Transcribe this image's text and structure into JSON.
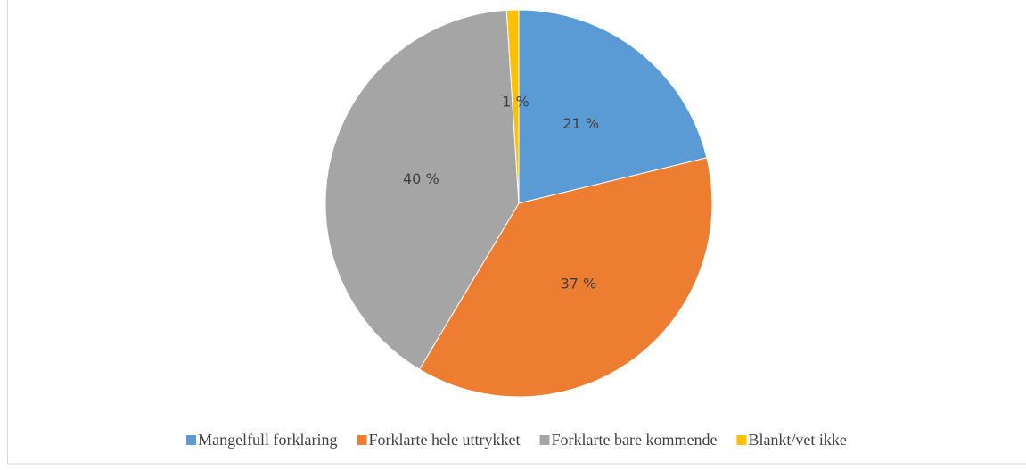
{
  "chart_data": {
    "type": "pie",
    "categories": [
      "Mangelfull forklaring",
      "Forklarte hele uttrykket",
      "Forklarte bare kommende",
      "Blankt/vet ikke"
    ],
    "values": [
      21,
      37,
      40,
      1
    ],
    "value_labels": [
      "21 %",
      "37 %",
      "40 %",
      "1 %"
    ],
    "colors": [
      "#5b9bd5",
      "#ed7d31",
      "#a5a5a5",
      "#ffc000"
    ],
    "legend": "bottom"
  }
}
